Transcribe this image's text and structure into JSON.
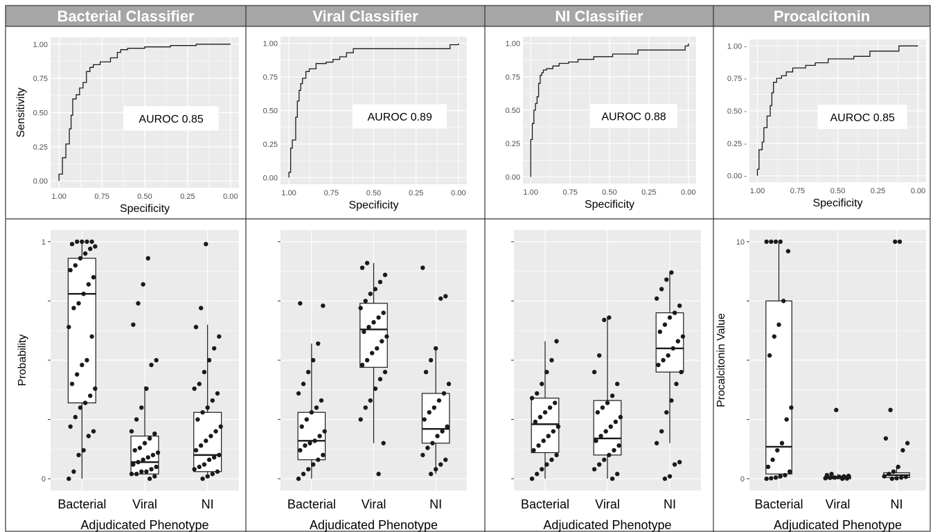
{
  "figure": {
    "colors": {
      "header_bg": "#a6a6a6",
      "header_text": "#ffffff",
      "panel_bg": "#ebebeb",
      "grid": "#ffffff",
      "line": "#1a1a1a",
      "point": "#1a1a1a",
      "border": "#333333"
    }
  },
  "chart_data": [
    {
      "type": "line",
      "title": "Bacterial Classifier",
      "xlabel": "Specificity",
      "ylabel": "Sensitivity",
      "annotation": "AUROC 0.85",
      "x_reversed": true,
      "xlim": [
        1,
        0
      ],
      "ylim": [
        0,
        1
      ],
      "xticks": [
        "1.00",
        "0.75",
        "0.50",
        "0.25",
        "0.00"
      ],
      "yticks": [
        "0.00",
        "0.25",
        "0.50",
        "0.75",
        "1.00"
      ],
      "series": [
        {
          "x": [
            1.0,
            1.0,
            0.98,
            0.98,
            0.96,
            0.96,
            0.94,
            0.94,
            0.93,
            0.93,
            0.92,
            0.92,
            0.9,
            0.9,
            0.88,
            0.88,
            0.86,
            0.86,
            0.84,
            0.84,
            0.82,
            0.82,
            0.8,
            0.8,
            0.76,
            0.76,
            0.7,
            0.7,
            0.66,
            0.66,
            0.64,
            0.64,
            0.6,
            0.6,
            0.5,
            0.5,
            0.35,
            0.35,
            0.2,
            0.2,
            0.0
          ],
          "y": [
            0.0,
            0.05,
            0.05,
            0.17,
            0.17,
            0.27,
            0.27,
            0.38,
            0.38,
            0.48,
            0.48,
            0.6,
            0.6,
            0.63,
            0.63,
            0.68,
            0.68,
            0.72,
            0.72,
            0.8,
            0.8,
            0.83,
            0.83,
            0.85,
            0.85,
            0.87,
            0.87,
            0.9,
            0.9,
            0.94,
            0.94,
            0.96,
            0.96,
            0.97,
            0.97,
            0.98,
            0.98,
            0.99,
            0.99,
            1.0,
            1.0
          ]
        }
      ]
    },
    {
      "type": "line",
      "title": "Viral Classifier",
      "xlabel": "Specificity",
      "ylabel": "",
      "annotation": "AUROC 0.89",
      "x_reversed": true,
      "xlim": [
        1,
        0
      ],
      "ylim": [
        0,
        1
      ],
      "xticks": [
        "1.00",
        "0.75",
        "0.50",
        "0.25",
        "0.00"
      ],
      "yticks": [
        "0.00",
        "0.25",
        "0.50",
        "0.75",
        "1.00"
      ],
      "series": [
        {
          "x": [
            1.0,
            1.0,
            0.99,
            0.99,
            0.98,
            0.98,
            0.96,
            0.96,
            0.95,
            0.95,
            0.94,
            0.94,
            0.93,
            0.93,
            0.92,
            0.92,
            0.9,
            0.9,
            0.88,
            0.88,
            0.84,
            0.84,
            0.78,
            0.78,
            0.74,
            0.74,
            0.7,
            0.7,
            0.66,
            0.66,
            0.62,
            0.62,
            0.05,
            0.05,
            0.0,
            0.0
          ],
          "y": [
            0.0,
            0.04,
            0.04,
            0.22,
            0.22,
            0.28,
            0.28,
            0.45,
            0.45,
            0.57,
            0.57,
            0.65,
            0.65,
            0.7,
            0.7,
            0.74,
            0.74,
            0.79,
            0.79,
            0.81,
            0.81,
            0.85,
            0.85,
            0.86,
            0.86,
            0.88,
            0.88,
            0.9,
            0.9,
            0.93,
            0.93,
            0.96,
            0.96,
            0.99,
            0.99,
            1.0
          ]
        }
      ]
    },
    {
      "type": "line",
      "title": "NI Classifier",
      "xlabel": "Specificity",
      "ylabel": "",
      "annotation": "AUROC 0.88",
      "x_reversed": true,
      "xlim": [
        1,
        0
      ],
      "ylim": [
        0,
        1
      ],
      "xticks": [
        "1.00",
        "0.75",
        "0.50",
        "0.25",
        "0.00"
      ],
      "yticks": [
        "0.00",
        "0.25",
        "0.50",
        "0.75",
        "1.00"
      ],
      "series": [
        {
          "x": [
            1.0,
            1.0,
            0.99,
            0.99,
            0.98,
            0.98,
            0.97,
            0.97,
            0.96,
            0.96,
            0.95,
            0.95,
            0.94,
            0.94,
            0.93,
            0.93,
            0.92,
            0.92,
            0.9,
            0.9,
            0.86,
            0.86,
            0.82,
            0.82,
            0.76,
            0.76,
            0.7,
            0.7,
            0.6,
            0.6,
            0.48,
            0.48,
            0.32,
            0.32,
            0.02,
            0.02,
            0.0,
            0.0
          ],
          "y": [
            0.0,
            0.28,
            0.28,
            0.4,
            0.4,
            0.5,
            0.5,
            0.55,
            0.55,
            0.6,
            0.6,
            0.7,
            0.7,
            0.76,
            0.76,
            0.78,
            0.78,
            0.8,
            0.8,
            0.81,
            0.81,
            0.83,
            0.83,
            0.85,
            0.85,
            0.86,
            0.86,
            0.88,
            0.88,
            0.9,
            0.9,
            0.92,
            0.92,
            0.95,
            0.95,
            0.98,
            0.98,
            1.0
          ]
        }
      ]
    },
    {
      "type": "line",
      "title": "Procalcitonin",
      "xlabel": "Specificity",
      "ylabel": "",
      "annotation": "AUROC 0.85",
      "x_reversed": true,
      "xlim": [
        1,
        0
      ],
      "ylim": [
        0,
        1
      ],
      "xticks": [
        "1.00",
        "0.75",
        "0.50",
        "0.25",
        "0.00"
      ],
      "yticks": [
        "0.00 -",
        "0.25 -",
        "0.50 -",
        "0.75 -",
        "1.00 -"
      ],
      "series": [
        {
          "x": [
            1.0,
            1.0,
            0.99,
            0.99,
            0.97,
            0.97,
            0.96,
            0.96,
            0.94,
            0.94,
            0.92,
            0.92,
            0.91,
            0.91,
            0.9,
            0.9,
            0.88,
            0.88,
            0.85,
            0.85,
            0.82,
            0.82,
            0.78,
            0.78,
            0.7,
            0.7,
            0.64,
            0.64,
            0.56,
            0.56,
            0.4,
            0.4,
            0.3,
            0.3,
            0.12,
            0.12,
            0.0
          ],
          "y": [
            0.0,
            0.05,
            0.05,
            0.2,
            0.2,
            0.26,
            0.26,
            0.37,
            0.37,
            0.46,
            0.46,
            0.54,
            0.54,
            0.64,
            0.64,
            0.72,
            0.72,
            0.75,
            0.75,
            0.77,
            0.77,
            0.8,
            0.8,
            0.83,
            0.83,
            0.85,
            0.85,
            0.87,
            0.87,
            0.9,
            0.9,
            0.92,
            0.92,
            0.96,
            0.96,
            1.0,
            1.0
          ]
        }
      ]
    },
    {
      "type": "box",
      "xlabel": "Adjudicated Phenotype",
      "ylabel": "Probability",
      "ylim": [
        0,
        1
      ],
      "yticks": [
        {
          "value": 0,
          "label": "0"
        },
        {
          "value": 0.25,
          "label": ""
        },
        {
          "value": 0.5,
          "label": ""
        },
        {
          "value": 0.75,
          "label": ""
        },
        {
          "value": 1,
          "label": "1"
        }
      ],
      "categories": [
        "Bacterial",
        "Viral",
        "NI"
      ],
      "boxes": [
        {
          "min": 0.0,
          "q1": 0.32,
          "median": 0.78,
          "q3": 0.93,
          "max": 1.0
        },
        {
          "min": 0.02,
          "q1": 0.02,
          "median": 0.07,
          "q3": 0.18,
          "max": 0.39
        },
        {
          "min": 0.02,
          "q1": 0.03,
          "median": 0.1,
          "q3": 0.28,
          "max": 0.65
        }
      ],
      "points": [
        [
          0.0,
          0.03,
          0.1,
          0.12,
          0.18,
          0.2,
          0.22,
          0.26,
          0.3,
          0.32,
          0.35,
          0.38,
          0.4,
          0.44,
          0.48,
          0.5,
          0.6,
          0.64,
          0.72,
          0.74,
          0.78,
          0.82,
          0.85,
          0.88,
          0.9,
          0.93,
          0.95,
          0.97,
          0.98,
          0.99,
          1.0,
          1.0,
          1.0,
          1.0
        ],
        [
          0.0,
          0.01,
          0.02,
          0.02,
          0.03,
          0.03,
          0.04,
          0.05,
          0.06,
          0.07,
          0.08,
          0.09,
          0.1,
          0.11,
          0.12,
          0.13,
          0.15,
          0.17,
          0.19,
          0.2,
          0.25,
          0.3,
          0.38,
          0.48,
          0.5,
          0.65,
          0.74,
          0.82,
          0.93
        ],
        [
          0.0,
          0.01,
          0.02,
          0.03,
          0.04,
          0.05,
          0.06,
          0.08,
          0.09,
          0.1,
          0.12,
          0.14,
          0.16,
          0.18,
          0.2,
          0.22,
          0.25,
          0.28,
          0.3,
          0.33,
          0.36,
          0.38,
          0.4,
          0.45,
          0.5,
          0.55,
          0.6,
          0.64,
          0.72,
          0.99
        ]
      ]
    },
    {
      "type": "box",
      "xlabel": "Adjudicated Phenotype",
      "ylabel": "",
      "ylim": [
        0,
        1
      ],
      "yticks": [
        {
          "value": 0,
          "label": ""
        },
        {
          "value": 0.25,
          "label": ""
        },
        {
          "value": 0.5,
          "label": ""
        },
        {
          "value": 0.75,
          "label": ""
        },
        {
          "value": 1,
          "label": ""
        }
      ],
      "categories": [
        "Bacterial",
        "Viral",
        "NI"
      ],
      "boxes": [
        {
          "min": 0.0,
          "q1": 0.08,
          "median": 0.16,
          "q3": 0.28,
          "max": 0.57
        },
        {
          "min": 0.15,
          "q1": 0.47,
          "median": 0.63,
          "q3": 0.74,
          "max": 0.91
        },
        {
          "min": 0.02,
          "q1": 0.15,
          "median": 0.21,
          "q3": 0.36,
          "max": 0.55
        }
      ],
      "points": [
        [
          0.0,
          0.02,
          0.04,
          0.06,
          0.08,
          0.1,
          0.12,
          0.14,
          0.15,
          0.16,
          0.18,
          0.2,
          0.22,
          0.25,
          0.28,
          0.3,
          0.33,
          0.36,
          0.4,
          0.45,
          0.5,
          0.57,
          0.73,
          0.74
        ],
        [
          0.02,
          0.15,
          0.25,
          0.3,
          0.33,
          0.38,
          0.42,
          0.45,
          0.48,
          0.5,
          0.53,
          0.55,
          0.58,
          0.6,
          0.62,
          0.64,
          0.66,
          0.68,
          0.7,
          0.72,
          0.75,
          0.78,
          0.8,
          0.83,
          0.86,
          0.89,
          0.91
        ],
        [
          0.02,
          0.04,
          0.06,
          0.08,
          0.1,
          0.13,
          0.15,
          0.18,
          0.2,
          0.22,
          0.25,
          0.28,
          0.3,
          0.33,
          0.36,
          0.4,
          0.45,
          0.5,
          0.55,
          0.76,
          0.77,
          0.89
        ]
      ]
    },
    {
      "type": "box",
      "xlabel": "Adjudicated Phenotype",
      "ylabel": "",
      "ylim": [
        0,
        1
      ],
      "yticks": [
        {
          "value": 0,
          "label": ""
        },
        {
          "value": 0.25,
          "label": ""
        },
        {
          "value": 0.5,
          "label": ""
        },
        {
          "value": 0.75,
          "label": ""
        },
        {
          "value": 1,
          "label": ""
        }
      ],
      "categories": [
        "Bacterial",
        "Viral",
        "NI"
      ],
      "boxes": [
        {
          "min": 0.0,
          "q1": 0.11,
          "median": 0.23,
          "q3": 0.34,
          "max": 0.58
        },
        {
          "min": 0.0,
          "q1": 0.1,
          "median": 0.17,
          "q3": 0.33,
          "max": 0.68
        },
        {
          "min": 0.15,
          "q1": 0.45,
          "median": 0.55,
          "q3": 0.7,
          "max": 0.87
        }
      ],
      "points": [
        [
          0.0,
          0.02,
          0.04,
          0.06,
          0.08,
          0.1,
          0.12,
          0.14,
          0.16,
          0.18,
          0.2,
          0.22,
          0.24,
          0.26,
          0.28,
          0.3,
          0.32,
          0.34,
          0.36,
          0.4,
          0.45,
          0.5,
          0.58
        ],
        [
          0.0,
          0.02,
          0.04,
          0.06,
          0.08,
          0.1,
          0.12,
          0.14,
          0.16,
          0.18,
          0.2,
          0.22,
          0.24,
          0.26,
          0.28,
          0.3,
          0.32,
          0.35,
          0.4,
          0.45,
          0.52,
          0.67,
          0.68
        ],
        [
          0.0,
          0.01,
          0.06,
          0.07,
          0.15,
          0.2,
          0.28,
          0.33,
          0.4,
          0.45,
          0.48,
          0.5,
          0.52,
          0.55,
          0.58,
          0.6,
          0.62,
          0.65,
          0.68,
          0.7,
          0.73,
          0.76,
          0.8,
          0.84,
          0.87
        ]
      ]
    },
    {
      "type": "box",
      "xlabel": "Adjudicated Phenotype",
      "ylabel": "Procalcitonin Value",
      "ylim": [
        0,
        10
      ],
      "yticks": [
        {
          "value": 0,
          "label": "0"
        },
        {
          "value": 2.5,
          "label": ""
        },
        {
          "value": 5,
          "label": ""
        },
        {
          "value": 7.5,
          "label": ""
        },
        {
          "value": 10,
          "label": "10"
        }
      ],
      "categories": [
        "Bacterial",
        "Viral",
        "NI"
      ],
      "boxes": [
        {
          "min": 0.0,
          "q1": 0.2,
          "median": 1.35,
          "q3": 7.5,
          "max": 10.0
        },
        {
          "min": 0.0,
          "q1": 0.0,
          "median": 0.05,
          "q3": 0.1,
          "max": 0.2
        },
        {
          "min": 0.0,
          "q1": 0.05,
          "median": 0.15,
          "q3": 0.25,
          "max": 0.5
        }
      ],
      "points": [
        [
          0.0,
          0.02,
          0.05,
          0.1,
          0.15,
          0.3,
          0.5,
          0.8,
          1.2,
          1.5,
          2.5,
          3.0,
          5.2,
          6.0,
          6.5,
          7.5,
          9.6,
          10.0,
          10.0,
          10.0,
          10.0
        ],
        [
          0.0,
          0.01,
          0.02,
          0.04,
          0.05,
          0.08,
          0.1,
          0.12,
          0.15,
          0.2,
          2.9
        ],
        [
          0.0,
          0.02,
          0.05,
          0.08,
          0.1,
          0.2,
          0.3,
          0.5,
          1.2,
          1.5,
          1.7,
          2.9,
          10.0,
          10.0
        ]
      ]
    }
  ]
}
